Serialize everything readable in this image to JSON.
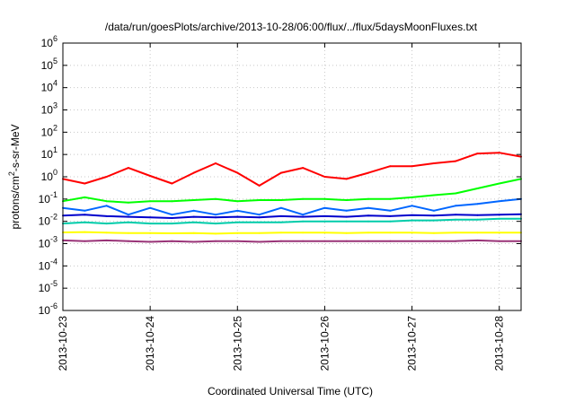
{
  "chart_data": {
    "type": "line",
    "title": "/data/run/goesPlots/archive/2013-10-28/06:00/flux/../flux/5daysMoonFluxes.txt",
    "xlabel": "Coordinated Universal Time (UTC)",
    "ylabel_parts": {
      "pre": "protons/cm",
      "sup": "2",
      "post": "-s-sr-MeV"
    },
    "y_scale": "log",
    "ylim_exponents": [
      -6,
      6
    ],
    "y_ticks": [
      {
        "base": "10",
        "exp": "6"
      },
      {
        "base": "10",
        "exp": "5"
      },
      {
        "base": "10",
        "exp": "4"
      },
      {
        "base": "10",
        "exp": "3"
      },
      {
        "base": "10",
        "exp": "2"
      },
      {
        "base": "10",
        "exp": "1"
      },
      {
        "base": "10",
        "exp": "0"
      },
      {
        "base": "10",
        "exp": "-1"
      },
      {
        "base": "10",
        "exp": "-2"
      },
      {
        "base": "10",
        "exp": "-3"
      },
      {
        "base": "10",
        "exp": "-4"
      },
      {
        "base": "10",
        "exp": "-5"
      },
      {
        "base": "10",
        "exp": "-6"
      }
    ],
    "x_ticks": [
      "2013-10-23",
      "2013-10-24",
      "2013-10-25",
      "2013-10-26",
      "2013-10-27",
      "2013-10-28"
    ],
    "x_range": [
      "2013-10-23 00:00",
      "2013-10-28 06:00"
    ],
    "grid": true,
    "legend": "none",
    "series": [
      {
        "color": "#ff0000",
        "x": [
          "2013-10-23 00:00",
          "2013-10-23 06:00",
          "2013-10-23 12:00",
          "2013-10-23 18:00",
          "2013-10-24 00:00",
          "2013-10-24 06:00",
          "2013-10-24 12:00",
          "2013-10-24 18:00",
          "2013-10-25 00:00",
          "2013-10-25 06:00",
          "2013-10-25 12:00",
          "2013-10-25 18:00",
          "2013-10-26 00:00",
          "2013-10-26 06:00",
          "2013-10-26 12:00",
          "2013-10-26 18:00",
          "2013-10-27 00:00",
          "2013-10-27 06:00",
          "2013-10-27 12:00",
          "2013-10-27 18:00",
          "2013-10-28 00:00",
          "2013-10-28 06:00"
        ],
        "values": [
          0.8,
          0.5,
          1.0,
          2.5,
          1.1,
          0.5,
          1.5,
          4.0,
          1.5,
          0.4,
          1.5,
          2.5,
          1.0,
          0.8,
          1.5,
          3.0,
          3.0,
          4.0,
          5.0,
          11,
          12,
          8
        ]
      },
      {
        "color": "#00ff00",
        "x": [
          "2013-10-23 00:00",
          "2013-10-23 06:00",
          "2013-10-23 12:00",
          "2013-10-23 18:00",
          "2013-10-24 00:00",
          "2013-10-24 06:00",
          "2013-10-24 12:00",
          "2013-10-24 18:00",
          "2013-10-25 00:00",
          "2013-10-25 06:00",
          "2013-10-25 12:00",
          "2013-10-25 18:00",
          "2013-10-26 00:00",
          "2013-10-26 06:00",
          "2013-10-26 12:00",
          "2013-10-26 18:00",
          "2013-10-27 00:00",
          "2013-10-27 06:00",
          "2013-10-27 12:00",
          "2013-10-27 18:00",
          "2013-10-28 00:00",
          "2013-10-28 06:00"
        ],
        "values": [
          0.08,
          0.12,
          0.08,
          0.07,
          0.08,
          0.08,
          0.09,
          0.1,
          0.08,
          0.09,
          0.09,
          0.1,
          0.1,
          0.09,
          0.1,
          0.1,
          0.12,
          0.15,
          0.18,
          0.3,
          0.5,
          0.8
        ]
      },
      {
        "color": "#0066ff",
        "x": [
          "2013-10-23 00:00",
          "2013-10-23 06:00",
          "2013-10-23 12:00",
          "2013-10-23 18:00",
          "2013-10-24 00:00",
          "2013-10-24 06:00",
          "2013-10-24 12:00",
          "2013-10-24 18:00",
          "2013-10-25 00:00",
          "2013-10-25 06:00",
          "2013-10-25 12:00",
          "2013-10-25 18:00",
          "2013-10-26 00:00",
          "2013-10-26 06:00",
          "2013-10-26 12:00",
          "2013-10-26 18:00",
          "2013-10-27 00:00",
          "2013-10-27 06:00",
          "2013-10-27 12:00",
          "2013-10-27 18:00",
          "2013-10-28 00:00",
          "2013-10-28 06:00"
        ],
        "values": [
          0.04,
          0.03,
          0.05,
          0.02,
          0.04,
          0.02,
          0.03,
          0.02,
          0.03,
          0.02,
          0.04,
          0.02,
          0.04,
          0.03,
          0.04,
          0.03,
          0.05,
          0.03,
          0.05,
          0.06,
          0.08,
          0.1
        ]
      },
      {
        "color": "#00ccaa",
        "x": [
          "2013-10-23 00:00",
          "2013-10-23 06:00",
          "2013-10-23 12:00",
          "2013-10-23 18:00",
          "2013-10-24 00:00",
          "2013-10-24 06:00",
          "2013-10-24 12:00",
          "2013-10-24 18:00",
          "2013-10-25 00:00",
          "2013-10-25 06:00",
          "2013-10-25 12:00",
          "2013-10-25 18:00",
          "2013-10-26 00:00",
          "2013-10-26 06:00",
          "2013-10-26 12:00",
          "2013-10-26 18:00",
          "2013-10-27 00:00",
          "2013-10-27 06:00",
          "2013-10-27 12:00",
          "2013-10-27 18:00",
          "2013-10-28 00:00",
          "2013-10-28 06:00"
        ],
        "values": [
          0.008,
          0.009,
          0.008,
          0.009,
          0.008,
          0.008,
          0.009,
          0.008,
          0.009,
          0.009,
          0.009,
          0.01,
          0.01,
          0.01,
          0.01,
          0.01,
          0.011,
          0.011,
          0.012,
          0.012,
          0.013,
          0.013
        ]
      },
      {
        "color": "#0000cc",
        "x": [
          "2013-10-23 00:00",
          "2013-10-23 06:00",
          "2013-10-23 12:00",
          "2013-10-23 18:00",
          "2013-10-24 00:00",
          "2013-10-24 06:00",
          "2013-10-24 12:00",
          "2013-10-24 18:00",
          "2013-10-25 00:00",
          "2013-10-25 06:00",
          "2013-10-25 12:00",
          "2013-10-25 18:00",
          "2013-10-26 00:00",
          "2013-10-26 06:00",
          "2013-10-26 12:00",
          "2013-10-26 18:00",
          "2013-10-27 00:00",
          "2013-10-27 06:00",
          "2013-10-27 12:00",
          "2013-10-27 18:00",
          "2013-10-28 00:00",
          "2013-10-28 06:00"
        ],
        "values": [
          0.018,
          0.02,
          0.017,
          0.016,
          0.015,
          0.014,
          0.016,
          0.015,
          0.016,
          0.015,
          0.017,
          0.016,
          0.017,
          0.016,
          0.018,
          0.017,
          0.019,
          0.018,
          0.02,
          0.019,
          0.02,
          0.021
        ]
      },
      {
        "color": "#ffff00",
        "x": [
          "2013-10-23 00:00",
          "2013-10-23 06:00",
          "2013-10-23 12:00",
          "2013-10-23 18:00",
          "2013-10-24 00:00",
          "2013-10-24 06:00",
          "2013-10-24 12:00",
          "2013-10-24 18:00",
          "2013-10-25 00:00",
          "2013-10-25 06:00",
          "2013-10-25 12:00",
          "2013-10-25 18:00",
          "2013-10-26 00:00",
          "2013-10-26 06:00",
          "2013-10-26 12:00",
          "2013-10-26 18:00",
          "2013-10-27 00:00",
          "2013-10-27 06:00",
          "2013-10-27 12:00",
          "2013-10-27 18:00",
          "2013-10-28 00:00",
          "2013-10-28 06:00"
        ],
        "values": [
          0.0032,
          0.0033,
          0.0031,
          0.003,
          0.003,
          0.0029,
          0.003,
          0.0028,
          0.003,
          0.003,
          0.0031,
          0.0031,
          0.0031,
          0.003,
          0.0031,
          0.0031,
          0.0031,
          0.003,
          0.0031,
          0.0031,
          0.0031,
          0.0031
        ]
      },
      {
        "color": "#993377",
        "x": [
          "2013-10-23 00:00",
          "2013-10-23 06:00",
          "2013-10-23 12:00",
          "2013-10-23 18:00",
          "2013-10-24 00:00",
          "2013-10-24 06:00",
          "2013-10-24 12:00",
          "2013-10-24 18:00",
          "2013-10-25 00:00",
          "2013-10-25 06:00",
          "2013-10-25 12:00",
          "2013-10-25 18:00",
          "2013-10-26 00:00",
          "2013-10-26 06:00",
          "2013-10-26 12:00",
          "2013-10-26 18:00",
          "2013-10-27 00:00",
          "2013-10-27 06:00",
          "2013-10-27 12:00",
          "2013-10-27 18:00",
          "2013-10-28 00:00",
          "2013-10-28 06:00"
        ],
        "values": [
          0.0014,
          0.0013,
          0.0014,
          0.0013,
          0.0012,
          0.0013,
          0.0012,
          0.0013,
          0.0013,
          0.0012,
          0.0013,
          0.0013,
          0.0013,
          0.0013,
          0.0013,
          0.0013,
          0.0013,
          0.0013,
          0.0013,
          0.0014,
          0.0013,
          0.0013
        ]
      }
    ]
  }
}
